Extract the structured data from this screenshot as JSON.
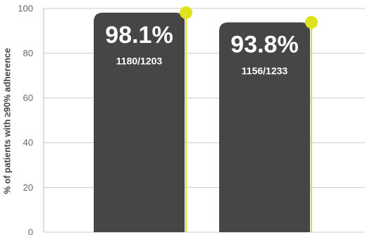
{
  "chart_data": {
    "type": "bar",
    "y_label": "% of patients with ≥90% adherence",
    "categories": [
      null,
      null
    ],
    "values": [
      98.1,
      93.8
    ],
    "value_labels": [
      "98.1%",
      "93.8%"
    ],
    "counts": [
      "1180/1203",
      "1156/1233"
    ],
    "color": "#464646",
    "marker_color": "#dde21c",
    "ylim": [
      0,
      100
    ],
    "yticks": [
      0,
      20,
      40,
      60,
      80,
      100
    ],
    "grid": true
  }
}
